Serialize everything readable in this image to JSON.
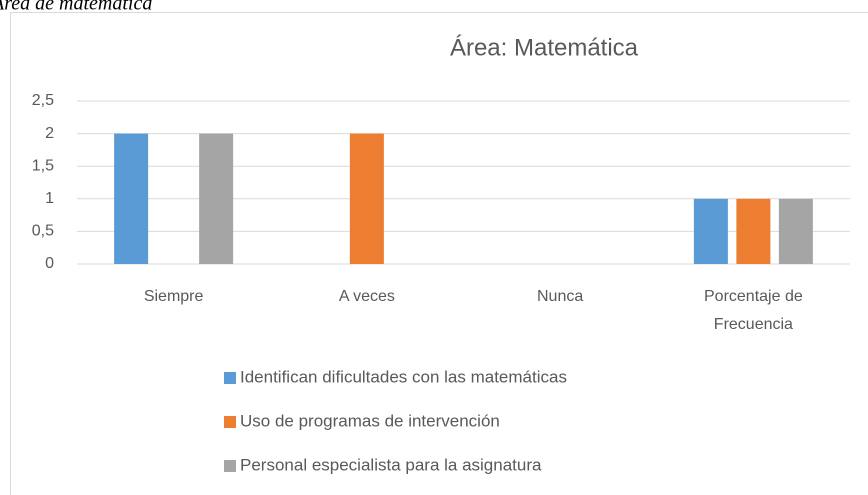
{
  "caption": "Área de matemática",
  "chart_data": {
    "type": "bar",
    "title": "Área: Matemática",
    "categories": [
      "Siempre",
      "A veces",
      "Nunca",
      "Porcentaje de Frecuencia"
    ],
    "series": [
      {
        "name": "Identifican dificultades con las matemáticas",
        "color": "#5b9bd5",
        "values": [
          2,
          0,
          0,
          1
        ]
      },
      {
        "name": "Uso de programas de intervención",
        "color": "#ed7d31",
        "values": [
          0,
          2,
          0,
          1
        ]
      },
      {
        "name": "Personal especialista para la asignatura",
        "color": "#a5a5a5",
        "values": [
          2,
          0,
          0,
          1
        ]
      }
    ],
    "ylim": [
      0,
      2.5
    ],
    "yticks": [
      0,
      {
        "value": 0.5,
        "label": "0,5"
      },
      1,
      {
        "value": 1.5,
        "label": "1,5"
      },
      2,
      {
        "value": 2.5,
        "label": "2,5"
      }
    ],
    "grid": true,
    "legend": "bottom"
  }
}
